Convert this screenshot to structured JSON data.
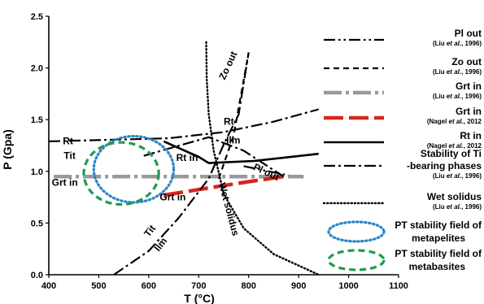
{
  "chart_data": {
    "type": "line",
    "xlabel": "T (°C)",
    "ylabel": "P (Gpa)",
    "xlim": [
      400,
      1100
    ],
    "ylim": [
      0.0,
      2.5
    ],
    "x_ticks": [
      "400",
      "500",
      "600",
      "700",
      "800",
      "900",
      "1000",
      "1100"
    ],
    "y_ticks": [
      "0.0",
      "0.5",
      "1.0",
      "1.5",
      "2.0",
      "2.5"
    ],
    "series": [
      {
        "name": "Pl out",
        "source": "(Liu et al., 1996)",
        "style": "dashdotdot",
        "color": "#000000",
        "points": [
          [
            790,
            1.05
          ],
          [
            880,
            0.96
          ]
        ]
      },
      {
        "name": "Zo out",
        "source": "(Liu et al., 1996)",
        "style": "dashed",
        "color": "#000000",
        "points": [
          [
            740,
            0.93
          ],
          [
            770,
            1.35
          ],
          [
            800,
            2.15
          ]
        ]
      },
      {
        "name": "Grt in",
        "source": "(Liu et al., 1996)",
        "style": "dashdot-thick",
        "color": "#999999",
        "points": [
          [
            410,
            0.95
          ],
          [
            910,
            0.95
          ]
        ]
      },
      {
        "name": "Grt in",
        "source": "(Nagel et al., 2012)",
        "style": "longdash-thick",
        "color": "#d8261c",
        "points": [
          [
            630,
            0.77
          ],
          [
            720,
            0.84
          ],
          [
            800,
            0.9
          ],
          [
            870,
            0.95
          ]
        ]
      },
      {
        "name": "Rt in",
        "source": "(Nagel et al., 2012)",
        "style": "solid",
        "color": "#000000",
        "points": [
          [
            630,
            1.29
          ],
          [
            700,
            1.14
          ],
          [
            720,
            1.08
          ],
          [
            810,
            1.1
          ],
          [
            940,
            1.17
          ]
        ]
      },
      {
        "name": "Stability of Ti -bearing phases",
        "source": "(Liu et al., 1996)",
        "style": "dashdot",
        "color": "#000000",
        "segments": [
          [
            [
              400,
              1.29
            ],
            [
              640,
              1.32
            ],
            [
              750,
              1.38
            ],
            [
              850,
              1.48
            ],
            [
              940,
              1.6
            ]
          ],
          [
            [
              590,
              1.15
            ],
            [
              640,
              1.22
            ],
            [
              720,
              1.33
            ],
            [
              790,
              1.2
            ],
            [
              870,
              0.95
            ]
          ],
          [
            [
              530,
              0.0
            ],
            [
              600,
              0.23
            ],
            [
              660,
              0.55
            ],
            [
              720,
              0.93
            ],
            [
              750,
              1.26
            ],
            [
              780,
              1.55
            ],
            [
              800,
              2.15
            ]
          ]
        ]
      },
      {
        "name": "Wet solidus",
        "source": "(Liu et al., 1996)",
        "style": "dotted",
        "color": "#000000",
        "points": [
          [
            715,
            2.25
          ],
          [
            716,
            1.9
          ],
          [
            720,
            1.55
          ],
          [
            730,
            1.2
          ],
          [
            750,
            0.78
          ],
          [
            790,
            0.45
          ],
          [
            850,
            0.2
          ],
          [
            940,
            0.0
          ]
        ]
      }
    ],
    "regions": [
      {
        "name": "PT stability field of metapelites",
        "color": "#2a85c8",
        "style": "dotted",
        "center": [
          570,
          1.02
        ],
        "radius": [
          80,
          0.32
        ]
      },
      {
        "name": "PT stability field of metabasites",
        "color": "#1f9a4d",
        "style": "dashed",
        "center": [
          545,
          0.98
        ],
        "radius": [
          75,
          0.3
        ]
      }
    ],
    "annotations": [
      {
        "text": "Rt",
        "x": 750,
        "y": 1.45,
        "rotate": 0
      },
      {
        "text": "Ilm",
        "x": 755,
        "y": 1.27,
        "rotate": 0
      },
      {
        "text": "Rt",
        "x": 428,
        "y": 1.26,
        "rotate": 0
      },
      {
        "text": "Tit",
        "x": 430,
        "y": 1.12,
        "rotate": 0
      },
      {
        "text": "Rt in",
        "x": 655,
        "y": 1.1,
        "rotate": 0
      },
      {
        "text": "Pl out",
        "x": 808,
        "y": 1.02,
        "rotate": 25
      },
      {
        "text": "Grt in",
        "x": 406,
        "y": 0.86,
        "rotate": 0
      },
      {
        "text": "Grt in",
        "x": 622,
        "y": 0.72,
        "rotate": 0
      },
      {
        "text": "Zo out",
        "x": 752,
        "y": 1.88,
        "rotate": -65
      },
      {
        "text": "Wet solidus",
        "x": 740,
        "y": 0.88,
        "rotate": 75
      },
      {
        "text": "Tit",
        "x": 600,
        "y": 0.36,
        "rotate": -52
      },
      {
        "text": "Ilm",
        "x": 620,
        "y": 0.22,
        "rotate": -52
      }
    ],
    "legend": [
      {
        "label": "Pl out",
        "source_pre": "(Liu ",
        "source_em": "et al.",
        "source_post": ", 1996)",
        "style": "dashdotdot",
        "color": "#000000"
      },
      {
        "label": "Zo out",
        "source_pre": "(Liu ",
        "source_em": "et al.",
        "source_post": ", 1996)",
        "style": "dashed",
        "color": "#000000"
      },
      {
        "label": "Grt in",
        "source_pre": "(Liu ",
        "source_em": "et al.",
        "source_post": ", 1996)",
        "style": "dashdot-thick",
        "color": "#999999"
      },
      {
        "label": "Grt in",
        "source_pre": "(Nagel ",
        "source_em": "et al.",
        "source_post": ", 2012",
        "style": "longdash-thick",
        "color": "#d8261c"
      },
      {
        "label": "Rt in",
        "source_pre": "(Nagel ",
        "source_em": "et al.",
        "source_post": ", 2012",
        "style": "solid",
        "color": "#000000"
      },
      {
        "label": "Stability of Ti",
        "label2": "-bearing phases",
        "source_pre": "(Liu ",
        "source_em": "et al.",
        "source_post": ", 1996)",
        "style": "dashdot",
        "color": "#000000"
      },
      {
        "label": "Wet solidus",
        "source_pre": "(Liu ",
        "source_em": "et al.",
        "source_post": ", 1996)",
        "style": "dotted",
        "color": "#000000"
      },
      {
        "label": "PT stability field of",
        "label2": "metapelites",
        "style": "ellipse-dotted",
        "color": "#2a85c8"
      },
      {
        "label": "PT stability field of",
        "label2": "metabasites",
        "style": "ellipse-dashed",
        "color": "#1f9a4d"
      }
    ],
    "grid": false
  }
}
